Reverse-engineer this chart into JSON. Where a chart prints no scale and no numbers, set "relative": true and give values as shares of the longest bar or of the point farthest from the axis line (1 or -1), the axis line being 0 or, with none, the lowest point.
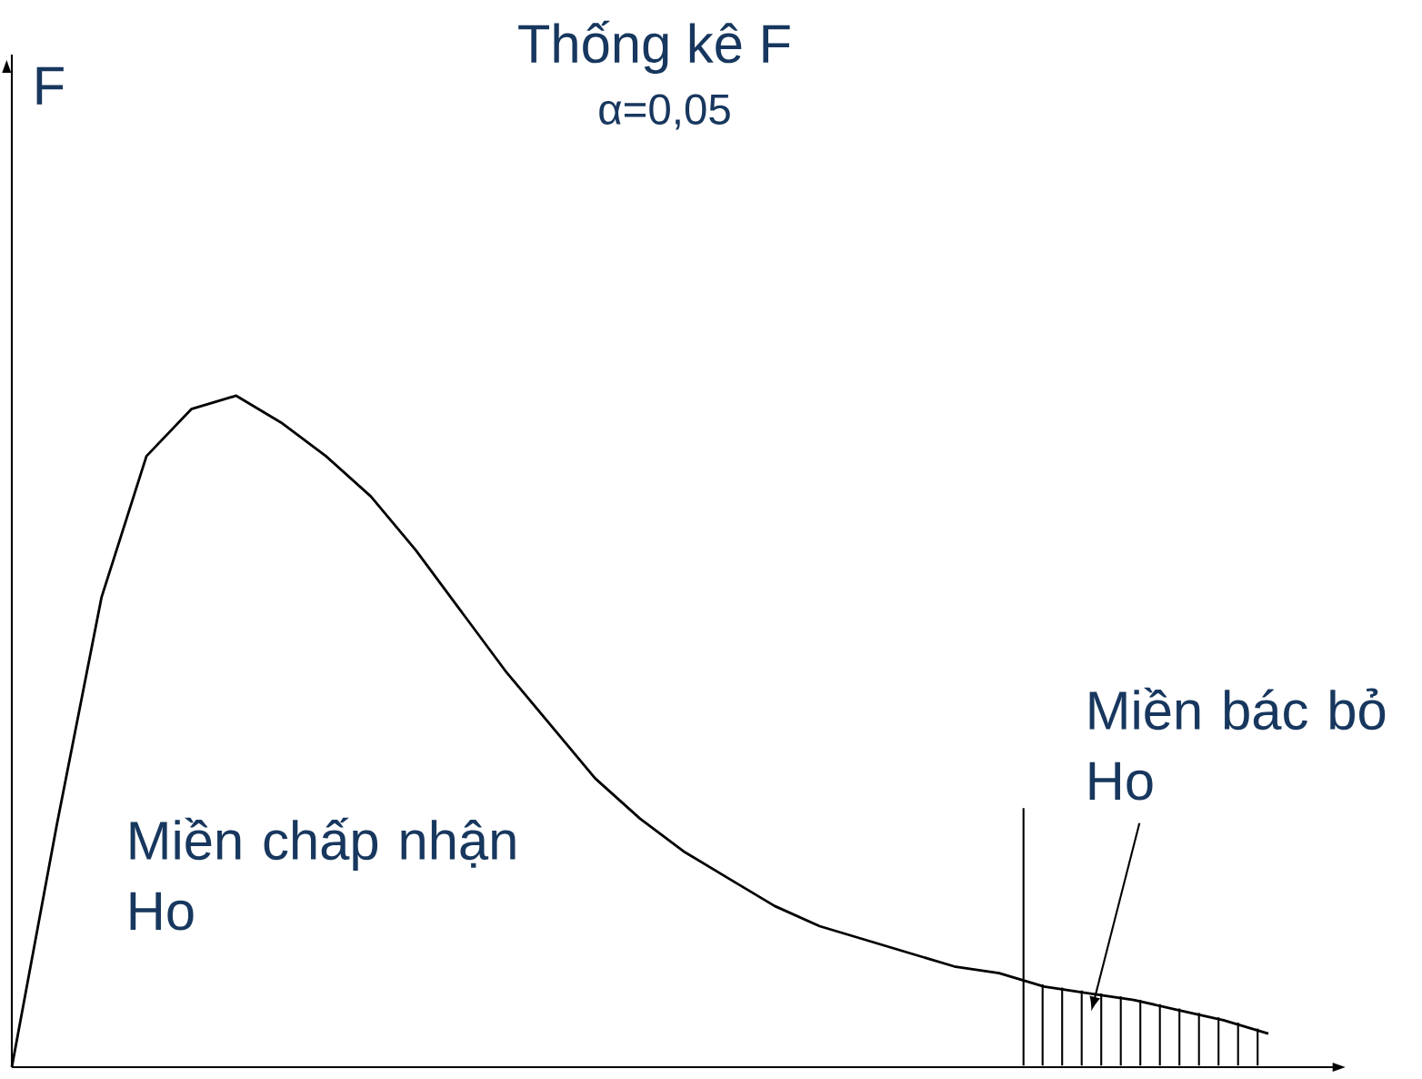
{
  "chart_data": {
    "type": "line",
    "title": "Thống kê F",
    "subtitle": "α=0,05",
    "relative": true,
    "categories": [
      null,
      null,
      null,
      null,
      null,
      null,
      null,
      null,
      null,
      null,
      null,
      null,
      null,
      null,
      null,
      null,
      null,
      null,
      null,
      null,
      null,
      null,
      null,
      null,
      null,
      null,
      null,
      null,
      null
    ],
    "series": [
      {
        "color": "#000000",
        "values": [
          0,
          0.36,
          0.7,
          0.91,
          0.98,
          1.0,
          0.96,
          0.91,
          0.85,
          0.77,
          0.68,
          0.59,
          0.51,
          0.43,
          0.37,
          0.32,
          0.28,
          0.24,
          0.21,
          0.19,
          0.17,
          0.15,
          0.14,
          0.12,
          0.11,
          0.1,
          0.085,
          0.07,
          0.05
        ]
      }
    ],
    "annotations": [
      "F",
      "Miền chấp nhận Ho",
      "Miền bác bỏ Ho"
    ]
  }
}
